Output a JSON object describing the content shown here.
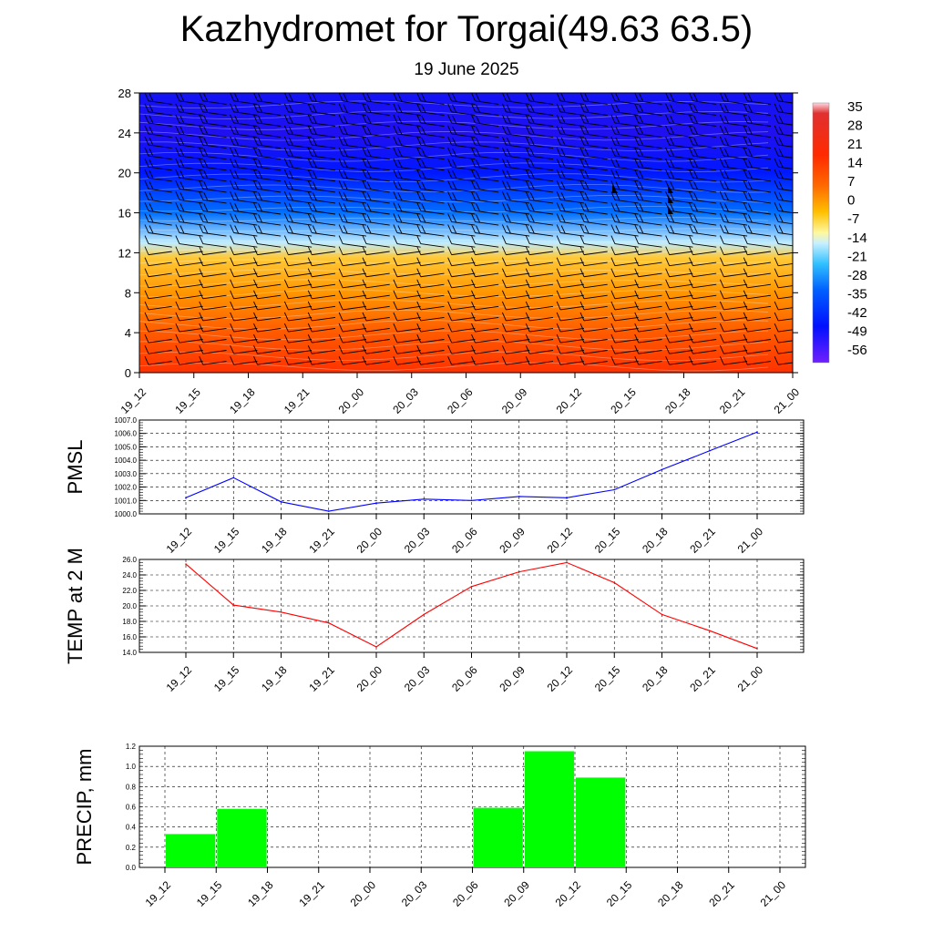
{
  "header": {
    "title": "Kazhydromet for Torgai(49.63 63.5)",
    "subtitle": "19 June 2025"
  },
  "chart_data": [
    {
      "type": "heatmap",
      "title": "",
      "xlabel": "",
      "ylabel": "",
      "x_ticks": [
        "19_12",
        "19_15",
        "19_18",
        "19_21",
        "20_00",
        "20_03",
        "20_06",
        "20_09",
        "20_12",
        "20_15",
        "20_18",
        "20_21",
        "21_00"
      ],
      "y_ticks": [
        "0",
        "4",
        "8",
        "12",
        "16",
        "20",
        "24",
        "28"
      ],
      "ylim": [
        0,
        28
      ],
      "colorbar_labels": [
        "35",
        "28",
        "21",
        "14",
        "7",
        "0",
        "-7",
        "-14",
        "-21",
        "-28",
        "-35",
        "-42",
        "-49",
        "-56"
      ],
      "temperature_profile": [
        {
          "height": 0,
          "value": 20
        },
        {
          "height": 4,
          "value": 14
        },
        {
          "height": 8,
          "value": 8
        },
        {
          "height": 11.5,
          "value": 1
        },
        {
          "height": 13,
          "value": -14
        },
        {
          "height": 16,
          "value": -35
        },
        {
          "height": 20,
          "value": -49
        },
        {
          "height": 24,
          "value": -56
        },
        {
          "height": 28,
          "value": -53
        }
      ],
      "overlay": "wind barbs"
    },
    {
      "type": "line",
      "ylabel": "PMSL",
      "x": [
        "19_12",
        "19_15",
        "19_18",
        "19_21",
        "20_00",
        "20_03",
        "20_06",
        "20_09",
        "20_12",
        "20_15",
        "20_18",
        "20_21",
        "21_00"
      ],
      "y_ticks": [
        "1000.0",
        "1001.0",
        "1002.0",
        "1003.0",
        "1004.0",
        "1005.0",
        "1006.0",
        "1007.0"
      ],
      "ylim": [
        1000,
        1007
      ],
      "series": [
        {
          "color": "#0000ff",
          "values": [
            1001.2,
            1002.7,
            1000.9,
            1000.2,
            1000.8,
            1001.1,
            1001.0,
            1001.3,
            1001.2,
            1001.8,
            1003.3,
            1004.7,
            1006.1
          ]
        }
      ],
      "grid": true
    },
    {
      "type": "line",
      "ylabel": "TEMP at 2 M",
      "x": [
        "19_12",
        "19_15",
        "19_18",
        "19_21",
        "20_00",
        "20_03",
        "20_06",
        "20_09",
        "20_12",
        "20_15",
        "20_18",
        "20_21",
        "21_00"
      ],
      "y_ticks": [
        "14.0",
        "16.0",
        "18.0",
        "20.0",
        "22.0",
        "24.0",
        "26.0"
      ],
      "ylim": [
        14,
        26
      ],
      "series": [
        {
          "color": "#ff0000",
          "values": [
            25.4,
            20.1,
            19.2,
            17.8,
            14.7,
            18.9,
            22.5,
            24.4,
            25.6,
            23.0,
            18.9,
            16.8,
            14.5
          ]
        }
      ],
      "grid": true
    },
    {
      "type": "bar",
      "ylabel": "PRECIP, mm",
      "categories": [
        "19_12",
        "19_15",
        "19_18",
        "19_21",
        "20_00",
        "20_03",
        "20_06",
        "20_09",
        "20_12",
        "20_15",
        "20_18",
        "20_21",
        "21_00"
      ],
      "y_ticks": [
        "0.0",
        "0.2",
        "0.4",
        "0.6",
        "0.8",
        "1.0",
        "1.2"
      ],
      "ylim": [
        0,
        1.2
      ],
      "series": [
        {
          "color": "#00ff00",
          "values": [
            0,
            0.33,
            0.58,
            0,
            0,
            0,
            0,
            0.59,
            1.15,
            0.89,
            0,
            0,
            0
          ]
        }
      ],
      "grid": true
    }
  ]
}
